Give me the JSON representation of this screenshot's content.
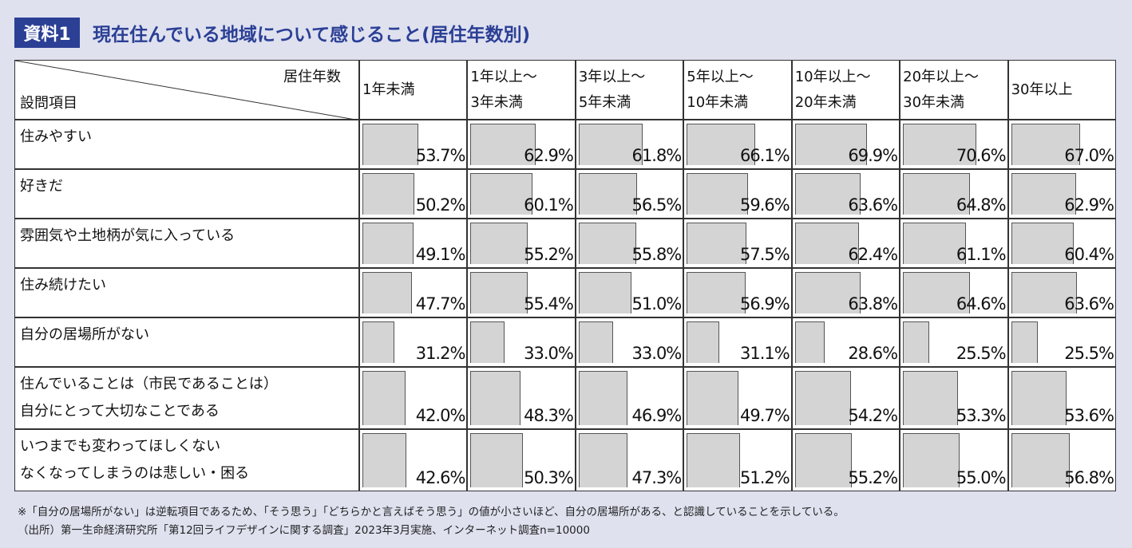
{
  "chart_data": {
    "type": "table-bar",
    "tag": "資料1",
    "title": "現在住んでいる地域について感じること(居住年数別)",
    "corner_column": "居住年数",
    "corner_row": "設問項目",
    "categories": [
      "住みやすい",
      "好きだ",
      "雰囲気や土地柄が気に入っている",
      "住み続けたい",
      "自分の居場所がない",
      "住んでいることは（市民であることは）\n自分にとって大切なことである",
      "いつまでも変わってほしくない\nなくなってしまうのは悲しい・困る"
    ],
    "series": [
      {
        "name": "1年未満",
        "values": [
          53.7,
          50.2,
          49.1,
          47.7,
          31.2,
          42.0,
          42.6
        ],
        "value_labels": [
          "53.7%",
          "50.2%",
          "49.1%",
          "47.7%",
          "31.2%",
          "42.0%",
          "42.6%"
        ]
      },
      {
        "name": "1年以上～\n3年未満",
        "values": [
          62.9,
          60.1,
          55.2,
          55.4,
          33.0,
          48.3,
          50.3
        ],
        "value_labels": [
          "62.9%",
          "60.1%",
          "55.2%",
          "55.4%",
          "33.0%",
          "48.3%",
          "50.3%"
        ]
      },
      {
        "name": "3年以上～\n5年未満",
        "values": [
          61.8,
          56.5,
          55.8,
          51.0,
          33.0,
          46.9,
          47.3
        ],
        "value_labels": [
          "61.8%",
          "56.5%",
          "55.8%",
          "51.0%",
          "33.0%",
          "46.9%",
          "47.3%"
        ]
      },
      {
        "name": "5年以上～\n10年未満",
        "values": [
          66.1,
          59.6,
          57.5,
          56.9,
          31.1,
          49.7,
          51.2
        ],
        "value_labels": [
          "66.1%",
          "59.6%",
          "57.5%",
          "56.9%",
          "31.1%",
          "49.7%",
          "51.2%"
        ]
      },
      {
        "name": "10年以上～\n20年未満",
        "values": [
          69.9,
          63.6,
          62.4,
          63.8,
          28.6,
          54.2,
          55.2
        ],
        "value_labels": [
          "69.9%",
          "63.6%",
          "62.4%",
          "63.8%",
          "28.6%",
          "54.2%",
          "55.2%"
        ]
      },
      {
        "name": "20年以上～\n30年未満",
        "values": [
          70.6,
          64.8,
          61.1,
          64.6,
          25.5,
          53.3,
          55.0
        ],
        "value_labels": [
          "70.6%",
          "64.8%",
          "61.1%",
          "64.6%",
          "25.5%",
          "53.3%",
          "55.0%"
        ]
      },
      {
        "name": "30年以上",
        "values": [
          67.0,
          62.9,
          60.4,
          63.6,
          25.5,
          53.6,
          56.8
        ],
        "value_labels": [
          "67.0%",
          "62.9%",
          "60.4%",
          "63.6%",
          "25.5%",
          "53.6%",
          "56.8%"
        ]
      }
    ],
    "xlim": [
      0,
      100
    ],
    "color": "#d4d4d4",
    "notes": [
      "※「自分の居場所がない」は逆転項目であるため、「そう思う」「どちらかと言えばそう思う」の値が小さいほど、自分の居場所がある、と認識していることを示している。",
      "（出所）第一生命経済研究所「第12回ライフデザインに関する調査」2023年3月実施、インターネット調査n=10000"
    ]
  }
}
